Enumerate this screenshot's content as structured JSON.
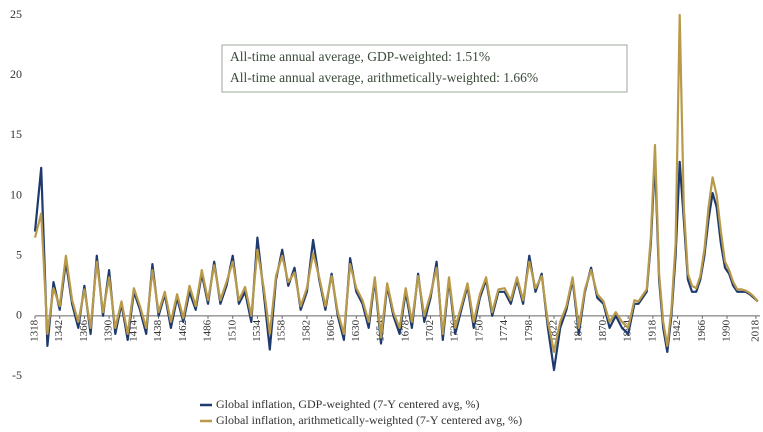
{
  "chart_data": {
    "type": "line",
    "annotations": [
      "All-time annual average, GDP-weighted: 1.51%",
      "All-time annual average, arithmetically-weighted: 1.66%"
    ],
    "x": [
      1318,
      1324,
      1330,
      1336,
      1342,
      1348,
      1354,
      1360,
      1366,
      1372,
      1378,
      1384,
      1390,
      1396,
      1402,
      1408,
      1414,
      1420,
      1426,
      1432,
      1438,
      1444,
      1450,
      1456,
      1462,
      1468,
      1474,
      1480,
      1486,
      1492,
      1498,
      1504,
      1510,
      1516,
      1522,
      1528,
      1534,
      1540,
      1546,
      1552,
      1558,
      1564,
      1570,
      1576,
      1582,
      1588,
      1594,
      1600,
      1606,
      1612,
      1618,
      1624,
      1630,
      1636,
      1642,
      1648,
      1654,
      1660,
      1666,
      1672,
      1678,
      1684,
      1690,
      1696,
      1702,
      1708,
      1714,
      1720,
      1726,
      1732,
      1738,
      1744,
      1750,
      1756,
      1762,
      1768,
      1774,
      1780,
      1786,
      1792,
      1798,
      1804,
      1810,
      1816,
      1822,
      1828,
      1834,
      1840,
      1846,
      1852,
      1858,
      1864,
      1870,
      1876,
      1882,
      1888,
      1894,
      1900,
      1904,
      1908,
      1912,
      1916,
      1920,
      1924,
      1928,
      1932,
      1936,
      1940,
      1944,
      1948,
      1952,
      1956,
      1960,
      1964,
      1968,
      1972,
      1976,
      1980,
      1984,
      1988,
      1992,
      1996,
      2000,
      2004,
      2008,
      2012,
      2016,
      2020
    ],
    "series": [
      {
        "name": "Global inflation, GDP-weighted (7-Y centered avg, %)",
        "color": "#1f3a6e",
        "values": [
          7,
          12.3,
          -2.5,
          2.8,
          0.5,
          4.5,
          1,
          -1,
          2.5,
          -1.5,
          5,
          0,
          3.8,
          -1.5,
          1,
          -2,
          2,
          0.5,
          -1.5,
          4.3,
          0,
          1.8,
          -1,
          1.5,
          -0.5,
          2,
          0.5,
          3.5,
          1,
          4.5,
          1,
          2.5,
          5,
          1,
          2,
          -0.5,
          6.5,
          2,
          -2.8,
          3,
          5.5,
          2.5,
          4,
          0.5,
          2,
          6.3,
          3,
          0.5,
          3.5,
          0,
          -2,
          4.8,
          2,
          1,
          -1,
          3,
          -2.3,
          2.5,
          0,
          -1.5,
          2,
          -1,
          3.5,
          -0.5,
          1.5,
          4.5,
          -2,
          3,
          -1.5,
          0.5,
          2.5,
          -1,
          1.5,
          3,
          0,
          2,
          2,
          1,
          3,
          1,
          5,
          2,
          3.5,
          -1,
          -4.5,
          -1,
          0.5,
          3,
          -1.5,
          2,
          4,
          1.5,
          1,
          -1,
          0,
          -1,
          -1.5,
          1,
          1,
          1.5,
          2,
          6,
          13,
          3,
          -1,
          -3,
          0,
          5,
          12.8,
          8,
          3,
          2,
          2,
          3,
          5,
          8,
          10.2,
          9,
          6,
          4,
          3.5,
          2.5,
          2,
          2,
          2,
          1.8,
          1.5,
          1.2
        ]
      },
      {
        "name": "Global inflation, arithmetically-weighted (7-Y centered avg, %)",
        "color": "#b89a4a",
        "values": [
          6.5,
          8.5,
          -1.5,
          2.3,
          0.8,
          5,
          1.3,
          -0.5,
          2.2,
          -1,
          4.5,
          0.3,
          3.2,
          -1,
          1.2,
          -1.5,
          2.3,
          0.8,
          -1,
          3.8,
          0.3,
          2,
          -0.5,
          1.8,
          -0.2,
          2.5,
          0.8,
          3.8,
          1.3,
          4.2,
          1.3,
          2.8,
          4.5,
          1.3,
          2.4,
          0,
          5.5,
          2.4,
          -1.5,
          3.3,
          5,
          2.8,
          3.6,
          0.8,
          2.3,
          5.2,
          3.2,
          0.8,
          3.3,
          0.3,
          -1.5,
          4.3,
          2.3,
          1.3,
          -0.5,
          3.2,
          -1.8,
          2.7,
          0.3,
          -1,
          2.3,
          -0.5,
          3.3,
          0,
          1.8,
          4,
          -1.5,
          3.2,
          -1,
          0.8,
          2.7,
          -0.5,
          1.8,
          3.2,
          0.3,
          2.2,
          2.3,
          1.3,
          3.2,
          1.3,
          4.5,
          2.3,
          3.3,
          -0.5,
          -3,
          -0.5,
          0.8,
          3.2,
          -1,
          2.2,
          3.8,
          1.8,
          1.2,
          -0.5,
          0.3,
          -0.5,
          -1,
          1.3,
          1.2,
          1.7,
          2.2,
          6.5,
          14.2,
          3.5,
          -0.5,
          -2.5,
          0.5,
          6,
          25,
          9,
          3.5,
          2.5,
          2.3,
          3.3,
          5.5,
          9,
          11.5,
          10,
          7,
          4.5,
          3.8,
          2.8,
          2.2,
          2.2,
          2.1,
          1.9,
          1.6,
          1.2
        ]
      }
    ],
    "xlim": [
      1318,
      2022
    ],
    "xticks": [
      1318,
      1342,
      1366,
      1390,
      1414,
      1438,
      1462,
      1486,
      1510,
      1534,
      1558,
      1582,
      1606,
      1630,
      1654,
      1678,
      1702,
      1726,
      1750,
      1774,
      1798,
      1822,
      1846,
      1870,
      1894,
      1918,
      1942,
      1966,
      1990,
      2018
    ],
    "ylim": [
      -5,
      25
    ],
    "yticks": [
      -5,
      0,
      5,
      10,
      15,
      20,
      25
    ],
    "grid": false
  }
}
